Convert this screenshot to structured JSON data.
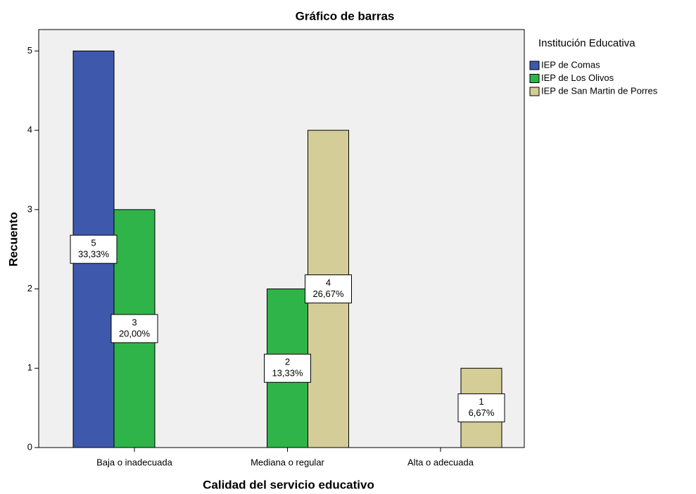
{
  "chart_data": {
    "type": "bar",
    "title": "Gráfico de barras",
    "x_label": "Calidad del servicio educativo",
    "y_label": "Recuento",
    "legend_title": "Institución Educativa",
    "legend": "right",
    "categories": [
      "Baja o inadecuada",
      "Mediana o regular",
      "Alta o adecuada"
    ],
    "series": [
      {
        "name": "IEP de Comas",
        "color": "#3e58ac",
        "values": [
          5,
          null,
          null
        ],
        "percent_labels": [
          "33,33%",
          null,
          null
        ]
      },
      {
        "name": "IEP de Los Olivos",
        "color": "#2fb44a",
        "values": [
          3,
          2,
          null
        ],
        "percent_labels": [
          "20,00%",
          "13,33%",
          null
        ]
      },
      {
        "name": "IEP de San Martin de Porres",
        "color": "#d5cd97",
        "values": [
          null,
          4,
          1
        ],
        "percent_labels": [
          null,
          "26,67%",
          "6,67%"
        ]
      }
    ],
    "ylim": [
      0,
      5.27
    ],
    "yticks": [
      0,
      1,
      2,
      3,
      4,
      5
    ],
    "grid": false
  }
}
